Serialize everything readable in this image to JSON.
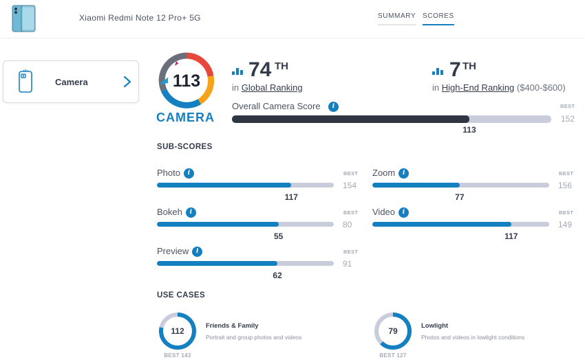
{
  "header": {
    "device_name": "Xiaomi Redmi Note 12 Pro+ 5G",
    "tabs": [
      "SUMMARY",
      "SCORES"
    ],
    "active_tab": "SCORES"
  },
  "sidebar": {
    "item_label": "Camera"
  },
  "badge": {
    "score": "113",
    "caption": "CAMERA"
  },
  "global_rank": {
    "number": "74",
    "suffix": "TH",
    "prefix": "in",
    "link": "Global Ranking"
  },
  "segment_rank": {
    "number": "7",
    "suffix": "TH",
    "prefix": "in",
    "link": "High-End Ranking",
    "extra": "($400-$600)"
  },
  "overall": {
    "title": "Overall Camera Score",
    "value": 113,
    "best": 152,
    "best_label": "BEST"
  },
  "sub_scores": {
    "title": "SUB-SCORES",
    "items": [
      {
        "name": "Photo",
        "value": 117,
        "best": 154
      },
      {
        "name": "Zoom",
        "value": 77,
        "best": 156
      },
      {
        "name": "Bokeh",
        "value": 55,
        "best": 80
      },
      {
        "name": "Video",
        "value": 117,
        "best": 149
      },
      {
        "name": "Preview",
        "value": 62,
        "best": 91
      }
    ]
  },
  "use_cases": {
    "title": "USE CASES",
    "items": [
      {
        "value": 112,
        "best": 143,
        "best_text": "BEST 143",
        "name": "Friends & Family",
        "desc": "Portrait and group photos and videos"
      },
      {
        "value": 79,
        "best": 127,
        "best_text": "BEST 127",
        "name": "Lowlight",
        "desc": "Photos and videos in lowlight conditions"
      }
    ]
  },
  "colors": {
    "accent": "#1580c0",
    "dark_bar": "#2f3542",
    "track": "#c8ccdb",
    "text": "#343c4b"
  }
}
